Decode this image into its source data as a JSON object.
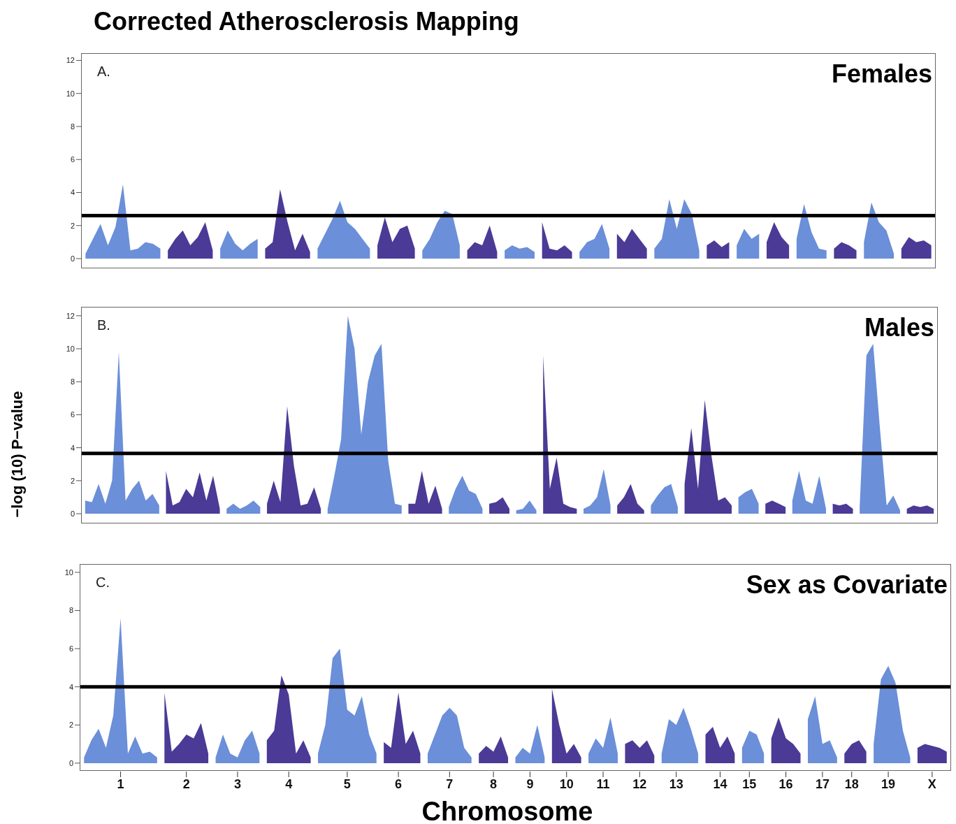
{
  "chart_data": [
    {
      "type": "area",
      "title": "Corrected Atherosclerosis Mapping",
      "subtitle": "Females",
      "annotations": [
        "A."
      ],
      "ylim": [
        -0.55,
        12.4
      ],
      "yticks": [
        0,
        2,
        4,
        6,
        8,
        10,
        12
      ],
      "tick_labels": "y",
      "ref_lines": [
        {
          "axis": "y",
          "value": 2.6,
          "color": "#000000"
        }
      ],
      "categories": [
        null,
        null,
        null,
        null,
        null,
        null,
        null,
        null,
        null,
        null,
        null,
        null,
        null,
        null,
        null,
        null,
        null,
        null,
        null,
        null,
        null,
        null,
        null,
        null,
        null,
        null,
        null,
        null,
        null,
        null,
        null,
        null,
        null,
        null,
        null,
        null,
        null,
        null,
        null,
        null,
        null,
        null,
        null,
        null,
        null,
        null,
        null,
        null,
        null,
        null,
        null,
        null,
        null,
        null,
        null,
        null,
        null,
        null,
        null,
        null,
        null,
        null,
        null,
        null,
        null,
        null,
        null,
        null,
        null,
        null,
        null,
        null,
        null,
        null,
        null,
        null,
        null,
        null,
        null,
        null,
        null,
        null,
        null,
        null,
        null,
        null,
        null,
        null,
        null,
        null,
        null,
        null,
        null,
        null,
        null,
        null,
        null,
        null,
        null,
        null,
        null,
        null,
        null,
        null,
        null,
        null,
        null,
        null,
        null,
        null,
        null,
        null,
        null,
        null
      ],
      "series": [
        {
          "color": "#6b8fd8",
          "values": [
            0.3,
            1.2,
            2.1,
            0.8,
            1.9,
            4.5,
            0.5,
            0.6,
            1,
            0.9,
            0.6,
            null,
            null,
            null,
            null,
            null,
            null,
            null,
            0.6,
            1.7,
            0.9,
            0.5,
            0.9,
            1.2,
            null,
            null,
            null,
            null,
            null,
            null,
            null,
            0.6,
            1.5,
            2.4,
            3.5,
            2.2,
            1.8,
            1.2,
            0.6,
            null,
            null,
            null,
            null,
            null,
            null,
            0.5,
            1.2,
            2.2,
            2.9,
            2.7,
            0.8,
            null,
            null,
            null,
            null,
            null,
            0.5,
            0.8,
            0.6,
            0.7,
            0.4,
            null,
            null,
            null,
            null,
            null,
            0.4,
            1,
            1.2,
            2.1,
            0.6,
            null,
            null,
            null,
            null,
            null,
            0.6,
            1.2,
            3.6,
            1.8,
            3.6,
            2.7,
            0.5,
            null,
            null,
            null,
            null,
            0.8,
            1.8,
            1.2,
            1.5,
            null,
            null,
            null,
            null,
            1.2,
            3.3,
            1.6,
            0.6,
            0.5,
            null,
            null,
            null,
            null,
            1,
            3.4,
            2.2,
            1.7,
            0.3,
            null,
            null,
            null,
            null,
            null
          ]
        },
        {
          "color": "#4b3a96",
          "values": [
            null,
            null,
            null,
            null,
            null,
            null,
            null,
            null,
            null,
            null,
            null,
            0.5,
            1.2,
            1.7,
            0.8,
            1.3,
            2.2,
            0.5,
            null,
            null,
            null,
            null,
            null,
            null,
            0.6,
            1.0,
            4.2,
            2.2,
            0.5,
            1.5,
            0.4,
            null,
            null,
            null,
            null,
            null,
            null,
            null,
            null,
            0.8,
            2.5,
            1.0,
            1.8,
            2.0,
            0.6,
            null,
            null,
            null,
            null,
            null,
            null,
            0.5,
            1.0,
            0.8,
            2.0,
            0.4,
            null,
            null,
            null,
            null,
            null,
            2.2,
            0.6,
            0.5,
            0.8,
            0.4,
            null,
            null,
            null,
            null,
            null,
            1.5,
            1.0,
            1.8,
            1.2,
            0.6,
            null,
            null,
            null,
            null,
            null,
            null,
            null,
            0.8,
            1.1,
            0.7,
            1.0,
            null,
            null,
            null,
            null,
            1,
            2.2,
            1.3,
            0.8,
            null,
            null,
            null,
            null,
            null,
            0.6,
            1,
            0.8,
            0.5,
            null,
            null,
            null,
            null,
            null,
            0.6,
            1.3,
            1.0,
            1.1,
            0.8
          ]
        }
      ]
    },
    {
      "type": "area",
      "subtitle": "Males",
      "annotations": [
        "B."
      ],
      "ylabel": "−log (10) P−value",
      "ylim": [
        -0.55,
        12.5
      ],
      "yticks": [
        0,
        2,
        4,
        6,
        8,
        10,
        12
      ],
      "tick_labels": "y",
      "ref_lines": [
        {
          "axis": "y",
          "value": 3.65,
          "color": "#000000"
        }
      ],
      "categories": [
        null,
        null,
        null,
        null,
        null,
        null,
        null,
        null,
        null,
        null,
        null,
        null,
        null,
        null,
        null,
        null,
        null,
        null,
        null,
        null,
        null,
        null,
        null,
        null,
        null,
        null,
        null,
        null,
        null,
        null,
        null,
        null,
        null,
        null,
        null,
        null,
        null,
        null,
        null,
        null,
        null,
        null,
        null,
        null,
        null,
        null,
        null,
        null,
        null,
        null,
        null,
        null,
        null,
        null,
        null,
        null,
        null,
        null,
        null,
        null,
        null,
        null,
        null,
        null,
        null,
        null,
        null,
        null,
        null,
        null,
        null,
        null,
        null,
        null,
        null,
        null,
        null,
        null,
        null,
        null,
        null,
        null,
        null,
        null,
        null,
        null,
        null,
        null,
        null,
        null,
        null,
        null,
        null,
        null,
        null,
        null,
        null,
        null,
        null,
        null,
        null,
        null,
        null,
        null,
        null,
        null,
        null,
        null,
        null,
        null,
        null,
        null,
        null,
        null,
        null,
        null,
        null,
        null,
        null,
        null,
        null,
        null,
        null,
        null,
        null,
        null,
        null
      ],
      "series": [
        {
          "color": "#6b8fd8",
          "values": [
            0.8,
            0.7,
            1.8,
            0.6,
            2,
            9.8,
            0.8,
            1.5,
            2,
            0.8,
            1.2,
            0.5,
            null,
            null,
            null,
            null,
            null,
            null,
            null,
            null,
            null,
            0.3,
            0.6,
            0.3,
            0.5,
            0.8,
            0.4,
            null,
            null,
            null,
            null,
            null,
            null,
            null,
            null,
            null,
            0.3,
            2.3,
            4.5,
            12,
            10,
            4.8,
            8,
            9.6,
            10.3,
            3.2,
            0.6,
            0.5,
            null,
            null,
            null,
            null,
            null,
            null,
            0.4,
            1.5,
            2.3,
            1.4,
            1.2,
            0.3,
            null,
            null,
            null,
            null,
            0.2,
            0.3,
            0.8,
            0.2,
            null,
            null,
            null,
            null,
            null,
            null,
            0.3,
            0.5,
            1,
            2.7,
            0.5,
            null,
            null,
            null,
            null,
            null,
            0.5,
            1.1,
            1.6,
            1.8,
            0.4,
            null,
            null,
            null,
            null,
            null,
            null,
            null,
            null,
            1.0,
            1.3,
            1.5,
            0.6,
            null,
            null,
            null,
            null,
            0.8,
            2.6,
            0.8,
            0.6,
            2.3,
            0.3,
            null,
            null,
            null,
            null,
            0.4,
            9.6,
            10.3,
            5.2,
            0.5,
            1.1,
            0.2,
            null,
            null,
            null,
            null,
            null
          ]
        },
        {
          "color": "#4b3a96",
          "values": [
            null,
            null,
            null,
            null,
            null,
            null,
            null,
            null,
            null,
            null,
            null,
            null,
            2.6,
            0.5,
            0.7,
            1.5,
            1.0,
            2.5,
            0.8,
            2.3,
            0.3,
            null,
            null,
            null,
            null,
            null,
            null,
            0.6,
            2,
            0.7,
            6.5,
            2.9,
            0.5,
            0.6,
            1.6,
            0.3,
            null,
            null,
            null,
            null,
            null,
            null,
            null,
            null,
            null,
            null,
            null,
            null,
            0.6,
            0.6,
            2.6,
            0.6,
            1.7,
            0.3,
            null,
            null,
            null,
            null,
            null,
            null,
            0.6,
            0.7,
            1.0,
            0.3,
            null,
            null,
            null,
            null,
            9.6,
            1.5,
            3.4,
            0.6,
            0.4,
            0.3,
            null,
            null,
            null,
            null,
            null,
            0.5,
            1.0,
            1.8,
            0.6,
            0.2,
            null,
            null,
            null,
            null,
            null,
            1.8,
            5.2,
            1.5,
            6.9,
            3.5,
            0.8,
            1.0,
            0.5,
            null,
            null,
            null,
            null,
            0.6,
            0.8,
            0.6,
            0.4,
            null,
            null,
            null,
            null,
            null,
            null,
            0.6,
            0.5,
            0.6,
            0.3,
            null,
            null,
            null,
            null,
            null,
            null,
            null,
            0.3,
            0.5,
            0.4,
            0.5,
            0.3
          ]
        }
      ]
    },
    {
      "type": "area",
      "subtitle": "Sex as Covariate",
      "annotations": [
        "C."
      ],
      "xlabel": "Chromosome",
      "ylim": [
        -0.37,
        10.4
      ],
      "yticks": [
        0,
        2,
        4,
        6,
        8,
        10
      ],
      "ref_lines": [
        {
          "axis": "y",
          "value": 4.0,
          "color": "#000000"
        }
      ],
      "categories": [
        null,
        null,
        null,
        null,
        null,
        "1",
        null,
        null,
        null,
        null,
        null,
        null,
        null,
        null,
        "2",
        null,
        null,
        null,
        null,
        null,
        null,
        "3",
        null,
        null,
        null,
        null,
        null,
        null,
        "4",
        null,
        null,
        null,
        null,
        null,
        null,
        null,
        "5",
        null,
        null,
        null,
        null,
        null,
        null,
        "6",
        null,
        null,
        null,
        null,
        null,
        null,
        "7",
        null,
        null,
        null,
        null,
        null,
        "8",
        null,
        null,
        null,
        null,
        "9",
        null,
        null,
        null,
        null,
        "10",
        null,
        null,
        null,
        null,
        "11",
        null,
        null,
        null,
        null,
        "12",
        null,
        null,
        null,
        null,
        "13",
        null,
        null,
        null,
        null,
        null,
        "14",
        null,
        null,
        null,
        "15",
        null,
        null,
        null,
        null,
        "16",
        null,
        null,
        null,
        null,
        "17",
        null,
        null,
        null,
        "18",
        null,
        null,
        null,
        null,
        "19",
        null,
        null,
        null,
        null,
        null,
        "X",
        null,
        null
      ],
      "series": [
        {
          "color": "#6b8fd8",
          "values": [
            0.3,
            1.2,
            1.8,
            0.8,
            2.5,
            7.6,
            0.5,
            1.4,
            0.5,
            0.6,
            0.3,
            null,
            null,
            null,
            null,
            null,
            null,
            null,
            0.3,
            1.5,
            0.5,
            0.3,
            1.2,
            1.7,
            0.5,
            null,
            null,
            null,
            null,
            null,
            null,
            null,
            0.5,
            2,
            5.5,
            6,
            2.8,
            2.5,
            3.5,
            1.5,
            0.5,
            null,
            null,
            null,
            null,
            null,
            null,
            0.5,
            1.5,
            2.5,
            2.9,
            2.5,
            0.8,
            0.3,
            null,
            null,
            null,
            null,
            null,
            0.3,
            0.8,
            0.5,
            2.0,
            0.3,
            null,
            null,
            null,
            null,
            null,
            0.5,
            1.3,
            0.8,
            2.4,
            0.5,
            null,
            null,
            null,
            null,
            null,
            0.5,
            2.3,
            2.0,
            2.9,
            1.8,
            0.5,
            null,
            null,
            null,
            null,
            null,
            0.8,
            1.7,
            1.5,
            0.5,
            null,
            null,
            null,
            null,
            null,
            2.3,
            3.5,
            1.0,
            1.2,
            0.3,
            null,
            null,
            null,
            null,
            1,
            4.4,
            5.1,
            4.2,
            1.7,
            0.3,
            null,
            null,
            null,
            null,
            null
          ]
        },
        {
          "color": "#4b3a96",
          "values": [
            null,
            null,
            null,
            null,
            null,
            null,
            null,
            null,
            null,
            null,
            null,
            3.7,
            0.6,
            1.0,
            1.5,
            1.3,
            2.1,
            0.5,
            null,
            null,
            null,
            null,
            null,
            null,
            null,
            1.2,
            1.7,
            4.6,
            3.6,
            0.5,
            1.2,
            0.3,
            null,
            null,
            null,
            null,
            null,
            null,
            null,
            null,
            null,
            1.1,
            0.8,
            3.7,
            1.0,
            1.7,
            0.5,
            null,
            null,
            null,
            null,
            null,
            null,
            null,
            0.5,
            0.9,
            0.6,
            1.4,
            0.3,
            null,
            null,
            null,
            null,
            null,
            3.9,
            2.0,
            0.5,
            1.0,
            0.3,
            null,
            null,
            null,
            null,
            null,
            1.0,
            1.2,
            0.8,
            1.2,
            0.4,
            null,
            null,
            null,
            null,
            null,
            null,
            1.5,
            1.9,
            0.8,
            1.4,
            0.5,
            null,
            null,
            null,
            null,
            1.3,
            2.4,
            1.3,
            1.0,
            0.5,
            null,
            null,
            null,
            null,
            null,
            0.5,
            1.0,
            1.2,
            0.6,
            null,
            null,
            null,
            null,
            null,
            null,
            0.8,
            1.0,
            0.9,
            0.8,
            0.6
          ]
        }
      ]
    }
  ]
}
